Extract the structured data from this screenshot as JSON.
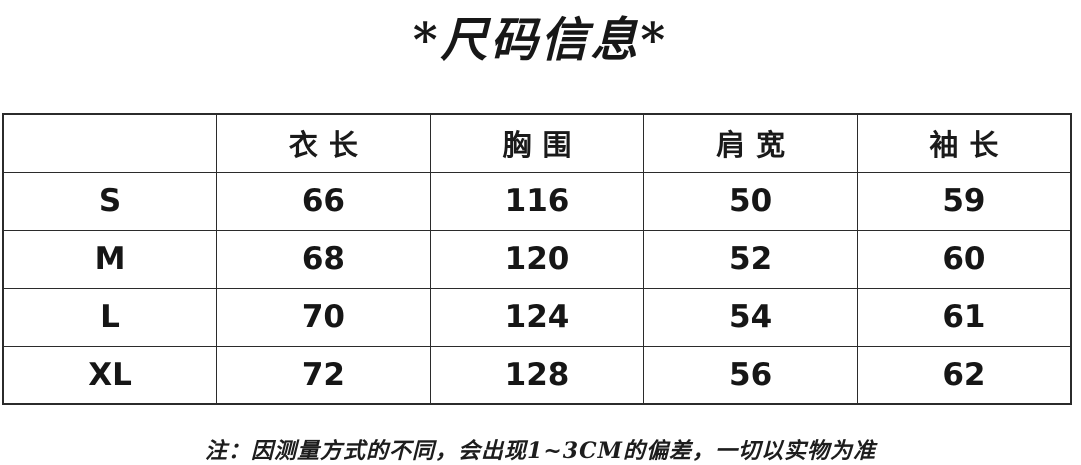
{
  "title": "*尺码信息*",
  "size_table": {
    "columns": [
      "",
      "衣长",
      "胸围",
      "肩宽",
      "袖长"
    ],
    "rows": [
      {
        "size": "S",
        "values": [
          "66",
          "116",
          "50",
          "59"
        ]
      },
      {
        "size": "M",
        "values": [
          "68",
          "120",
          "52",
          "60"
        ]
      },
      {
        "size": "L",
        "values": [
          "70",
          "124",
          "54",
          "61"
        ]
      },
      {
        "size": "XL",
        "values": [
          "72",
          "128",
          "56",
          "62"
        ]
      }
    ]
  },
  "footnote": "注：因测量方式的不同，会出现1~3CM的偏差，一切以实物为准",
  "colors": {
    "text": "#1c1c1c",
    "border": "#2b2b2b",
    "background": "#ffffff"
  }
}
